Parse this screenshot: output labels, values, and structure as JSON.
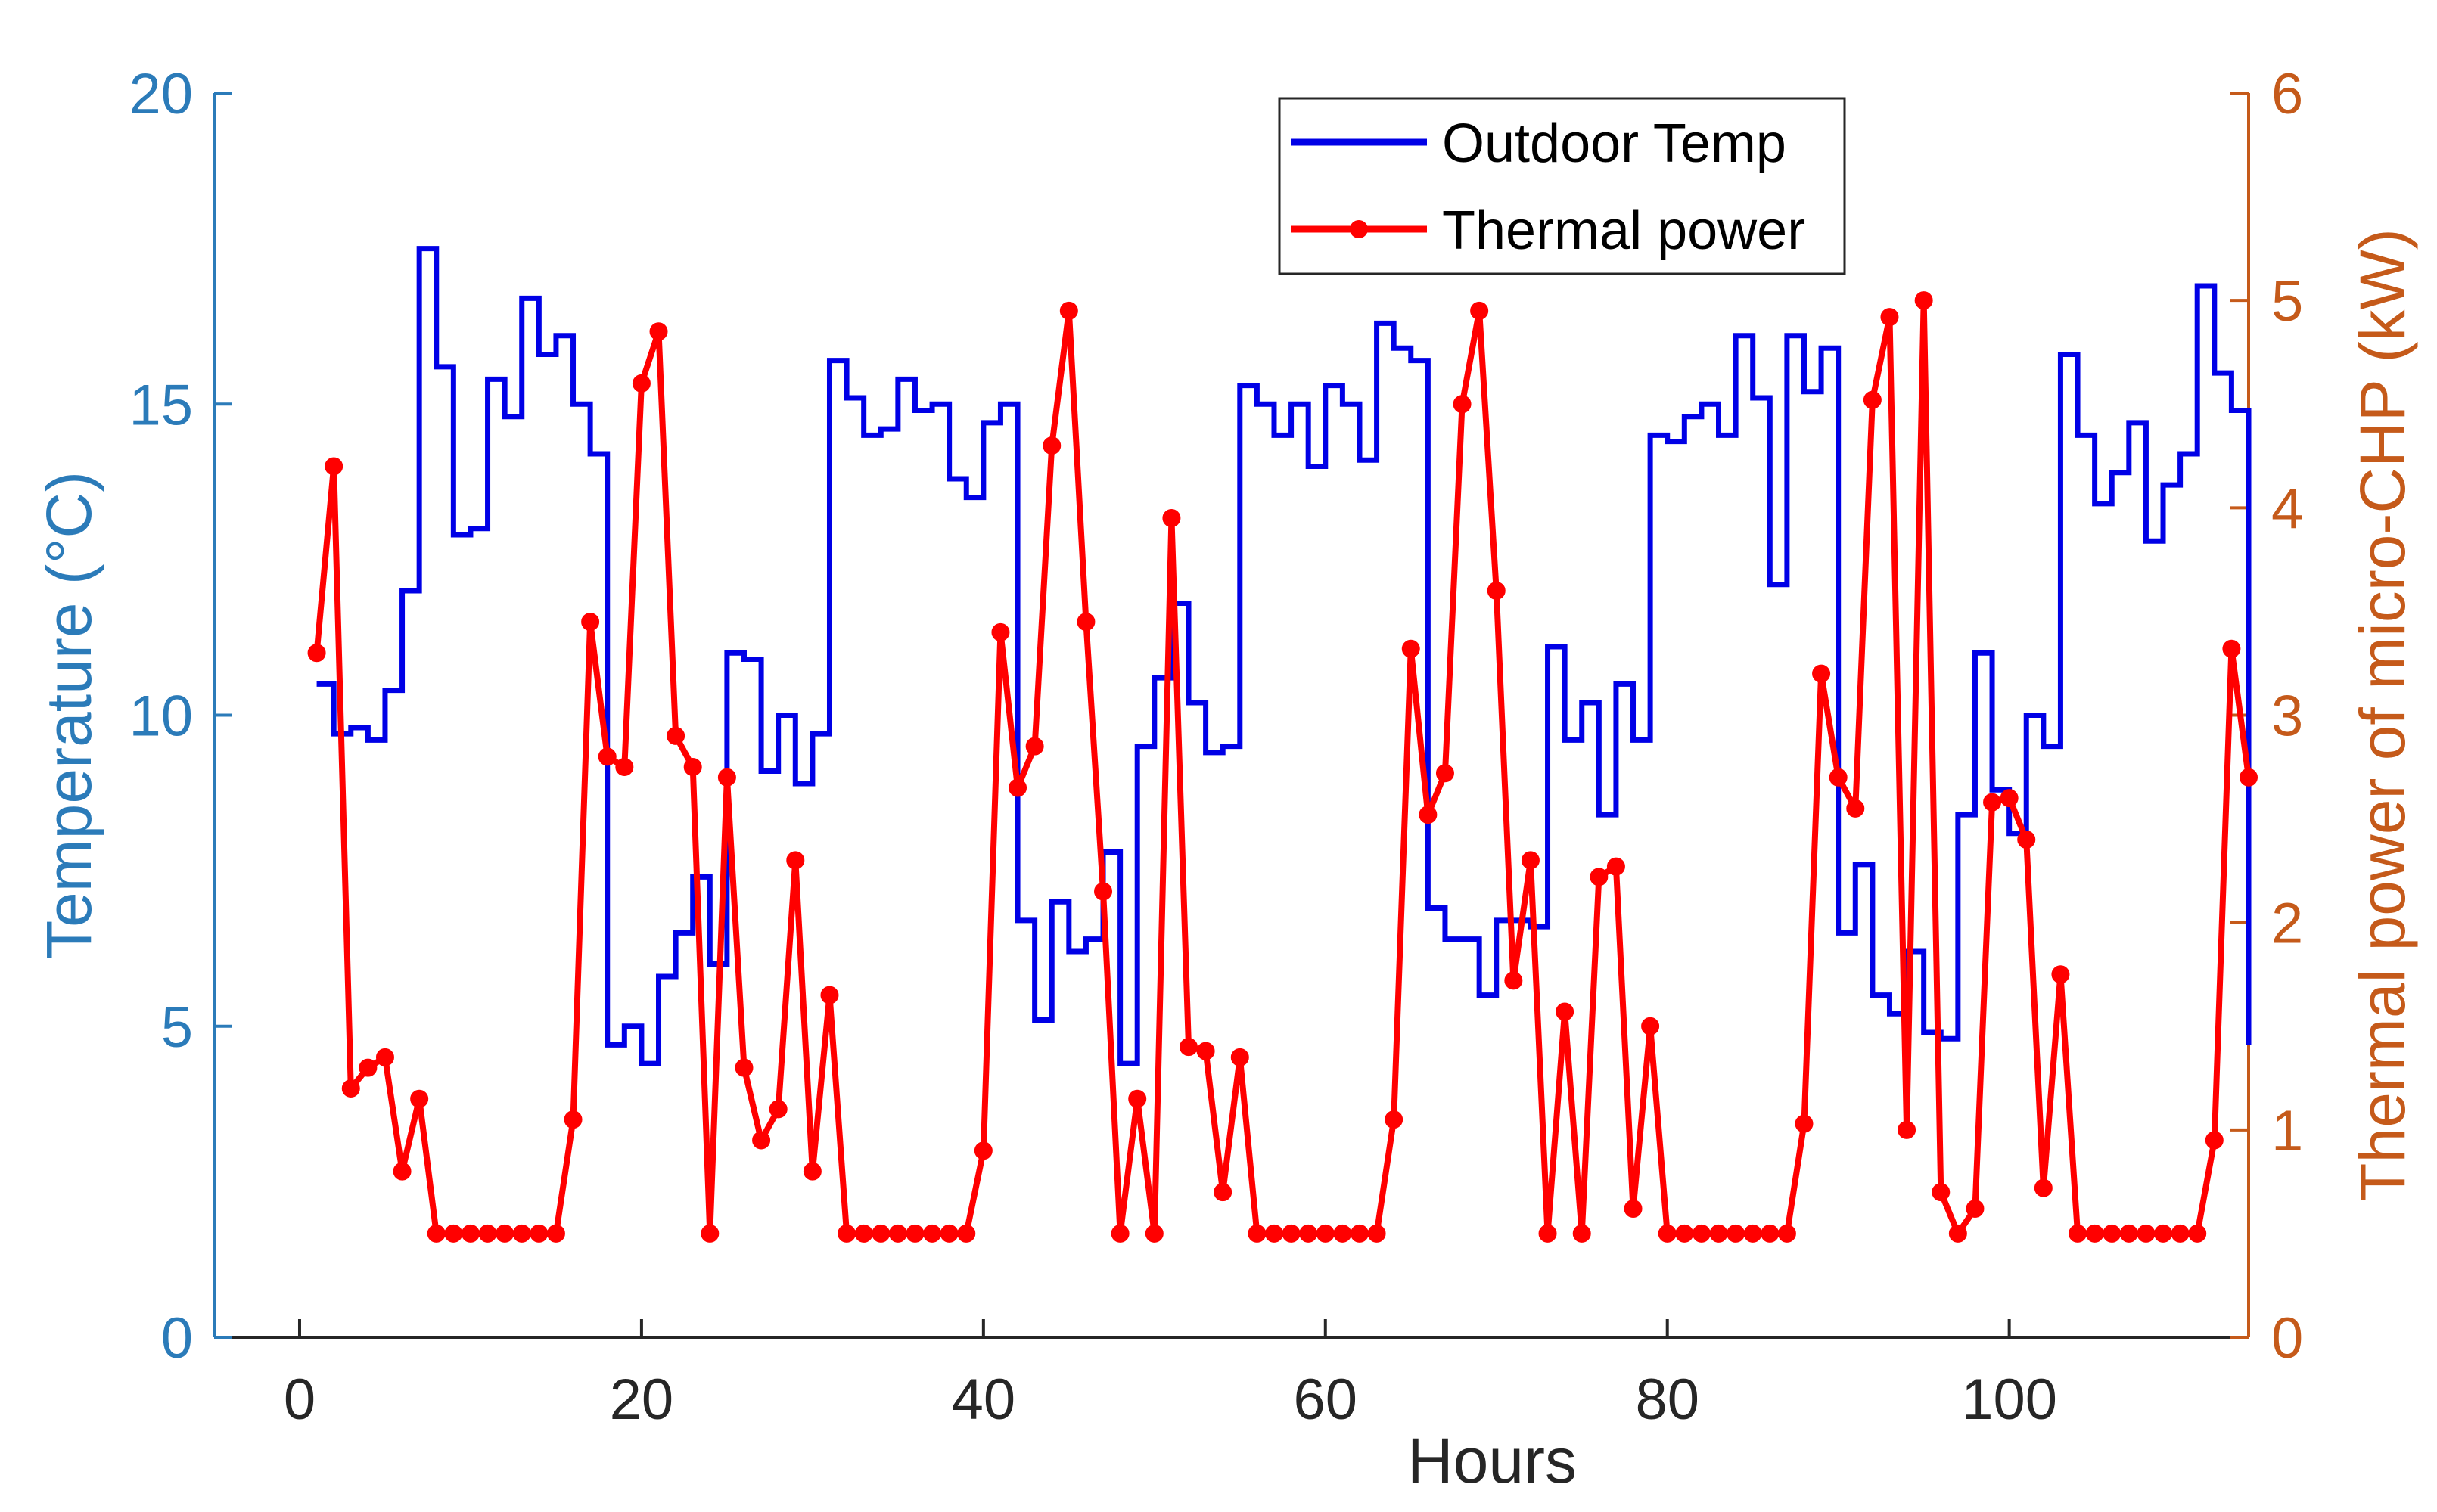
{
  "chart_data": {
    "type": "line",
    "xlabel": "Hours",
    "ylabel_left": "Temperature (°C)",
    "ylabel_right": "Thermal power of micro-CHP (kW)",
    "xlim": [
      -5,
      114
    ],
    "ylim_left": [
      0,
      20
    ],
    "ylim_right": [
      0,
      6
    ],
    "x_ticks": [
      0,
      20,
      40,
      60,
      80,
      100
    ],
    "y_ticks_left": [
      0,
      5,
      10,
      15,
      20
    ],
    "y_ticks_right": [
      0,
      1,
      2,
      3,
      4,
      5,
      6
    ],
    "grid": false,
    "legend_position": "top-center",
    "colors": {
      "temp_line": "#0000E6",
      "power_line": "#FF0000",
      "left_axis": "#2B7BB9",
      "right_axis": "#C55A1A",
      "x_axis": "#262626"
    },
    "series": [
      {
        "name": "Outdoor Temp",
        "axis": "left",
        "style": "stairs",
        "x": [
          1,
          2,
          3,
          4,
          5,
          6,
          7,
          8,
          9,
          10,
          11,
          12,
          13,
          14,
          15,
          16,
          17,
          18,
          19,
          20,
          21,
          22,
          23,
          24,
          25,
          26,
          27,
          28,
          29,
          30,
          31,
          32,
          33,
          34,
          35,
          36,
          37,
          38,
          39,
          40,
          41,
          42,
          43,
          44,
          45,
          46,
          47,
          48,
          49,
          50,
          51,
          52,
          53,
          54,
          55,
          56,
          57,
          58,
          59,
          60,
          61,
          62,
          63,
          64,
          65,
          66,
          67,
          68,
          69,
          70,
          71,
          72,
          73,
          74,
          75,
          76,
          77,
          78,
          79,
          80,
          81,
          82,
          83,
          84,
          85,
          86,
          87,
          88,
          89,
          90,
          91,
          92,
          93,
          94,
          95,
          96,
          97,
          98,
          99,
          100,
          101,
          102,
          103,
          104,
          105,
          106,
          107,
          108,
          109,
          110,
          111,
          112,
          113,
          114
        ],
        "values": [
          10.5,
          9.7,
          9.8,
          9.6,
          10.4,
          12,
          17.5,
          15.6,
          12.9,
          13,
          15.4,
          14.8,
          16.7,
          15.8,
          16.1,
          15,
          14.2,
          4.7,
          5,
          4.4,
          5.8,
          6.5,
          7.4,
          6,
          11,
          10.9,
          9.1,
          10,
          8.9,
          9.7,
          15.7,
          15.1,
          14.5,
          14.6,
          15.4,
          14.9,
          15,
          13.8,
          13.5,
          14.7,
          15,
          6.7,
          5.1,
          7,
          6.2,
          6.4,
          7.8,
          4.4,
          9.5,
          10.6,
          11.8,
          10.2,
          9.4,
          9.5,
          15.3,
          15,
          14.5,
          15,
          14,
          15.3,
          15,
          14.1,
          16.3,
          15.9,
          15.7,
          6.9,
          6.4,
          6.4,
          5.5,
          6.7,
          6.7,
          6.6,
          11.1,
          9.6,
          10.2,
          8.4,
          10.5,
          9.6,
          14.5,
          14.4,
          14.8,
          15,
          14.5,
          16.1,
          15.1,
          12.1,
          16.1,
          15.2,
          15.9,
          6.5,
          7.6,
          5.5,
          5.2,
          6.2,
          4.9,
          4.8,
          8.4,
          11,
          8.8,
          8.1,
          10,
          9.5,
          15.8,
          14.5,
          13.4,
          13.9,
          14.7,
          12.8,
          13.7,
          14.2,
          16.9,
          15.5,
          14.9,
          4.7
        ]
      },
      {
        "name": "Thermal power",
        "axis": "right",
        "style": "line-marker",
        "x": [
          1,
          2,
          3,
          4,
          5,
          6,
          7,
          8,
          9,
          10,
          11,
          12,
          13,
          14,
          15,
          16,
          17,
          18,
          19,
          20,
          21,
          22,
          23,
          24,
          25,
          26,
          27,
          28,
          29,
          30,
          31,
          32,
          33,
          34,
          35,
          36,
          37,
          38,
          39,
          40,
          41,
          42,
          43,
          44,
          45,
          46,
          47,
          48,
          49,
          50,
          51,
          52,
          53,
          54,
          55,
          56,
          57,
          58,
          59,
          60,
          61,
          62,
          63,
          64,
          65,
          66,
          67,
          68,
          69,
          70,
          71,
          72,
          73,
          74,
          75,
          76,
          77,
          78,
          79,
          80,
          81,
          82,
          83,
          84,
          85,
          86,
          87,
          88,
          89,
          90,
          91,
          92,
          93,
          94,
          95,
          96,
          97,
          98,
          99,
          100,
          101,
          102,
          103,
          104,
          105,
          106,
          107,
          108,
          109,
          110,
          111,
          112,
          113,
          114
        ],
        "values": [
          3.3,
          4.2,
          1.2,
          1.3,
          1.35,
          0.8,
          1.15,
          0.5,
          0.5,
          0.5,
          0.5,
          0.5,
          0.5,
          0.5,
          0.5,
          1.05,
          3.45,
          2.8,
          2.75,
          4.6,
          4.85,
          2.9,
          2.75,
          0.5,
          2.7,
          1.3,
          0.95,
          1.1,
          2.3,
          0.8,
          1.65,
          0.5,
          0.5,
          0.5,
          0.5,
          0.5,
          0.5,
          0.5,
          0.5,
          0.9,
          3.4,
          2.65,
          2.85,
          4.3,
          4.95,
          3.45,
          2.15,
          0.5,
          1.15,
          0.5,
          3.95,
          1.4,
          1.38,
          0.7,
          1.35,
          0.5,
          0.5,
          0.5,
          0.5,
          0.5,
          0.5,
          0.5,
          0.5,
          1.05,
          3.32,
          2.52,
          2.72,
          4.5,
          4.95,
          3.6,
          1.72,
          2.3,
          0.5,
          1.57,
          0.5,
          2.22,
          2.27,
          0.62,
          1.5,
          0.5,
          0.5,
          0.5,
          0.5,
          0.5,
          0.5,
          0.5,
          0.5,
          1.03,
          3.2,
          2.7,
          2.55,
          4.52,
          4.92,
          1.0,
          5.0,
          0.7,
          0.5,
          0.62,
          2.58,
          2.6,
          2.4,
          0.72,
          1.75,
          0.5,
          0.5,
          0.5,
          0.5,
          0.5,
          0.5,
          0.5,
          0.5,
          0.95,
          3.32,
          2.7
        ]
      }
    ]
  }
}
